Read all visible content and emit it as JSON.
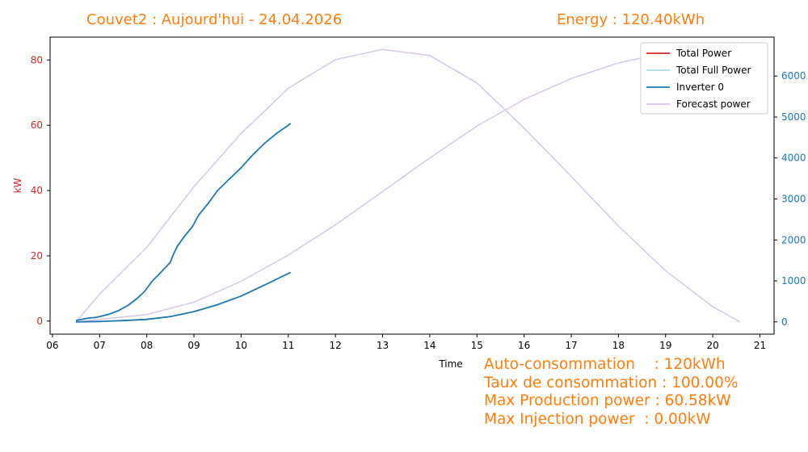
{
  "header": {
    "title": "Couvet2 : Aujourd'hui - 24.04.2026",
    "energy": "Energy : 120.40kWh"
  },
  "stats": [
    "Auto-consommation    : 120kWh",
    "Taux de consommation : 100.00%",
    "Max Production power : 60.58kW",
    "Max Injection power  : 0.00kW"
  ],
  "colors": {
    "total_power": "#d62728",
    "total_full_power": "#add8e6",
    "inverter": "#1f77b4",
    "forecast": "#d8c8e8",
    "left_axis": "#d62728",
    "right_axis": "#1f77b4"
  },
  "chart_data": {
    "type": "line",
    "xlabel": "Time",
    "ylabel": "kW",
    "x_ticks": [
      "06",
      "07",
      "08",
      "09",
      "10",
      "11",
      "12",
      "13",
      "14",
      "15",
      "16",
      "17",
      "18",
      "19",
      "20",
      "21"
    ],
    "xlim": [
      5.95,
      21.3
    ],
    "ylim": [
      -4,
      87
    ],
    "y_ticks": [
      0,
      20,
      40,
      60,
      80
    ],
    "y2lim": [
      -300,
      6950
    ],
    "y2_ticks": [
      0,
      1000,
      2000,
      3000,
      4000,
      5000,
      6000
    ],
    "legend_position": "top-right",
    "legend": [
      "Total Power",
      "Total Full Power",
      "Inverter 0",
      "Forecast power"
    ],
    "series": [
      {
        "name": "Inverter 0",
        "axis": "left",
        "x": [
          6.5,
          6.75,
          6.9,
          7.0,
          7.2,
          7.4,
          7.6,
          7.8,
          7.95,
          8.1,
          8.3,
          8.5,
          8.55,
          8.65,
          8.8,
          8.97,
          9.1,
          9.3,
          9.5,
          9.75,
          10.0,
          10.25,
          10.5,
          10.75,
          11.0,
          11.05
        ],
        "y": [
          0.2,
          0.9,
          1.1,
          1.4,
          2.1,
          3.2,
          4.8,
          7.0,
          9.0,
          12.0,
          15.0,
          18.0,
          20.0,
          23.0,
          26.0,
          29.0,
          32.5,
          36.0,
          40.0,
          43.5,
          47.0,
          51.0,
          54.5,
          57.5,
          60.0,
          60.58
        ]
      },
      {
        "name": "Inverter 0",
        "axis": "right",
        "x": [
          6.5,
          7.0,
          7.5,
          8.0,
          8.5,
          9.0,
          9.5,
          10.0,
          10.5,
          11.05
        ],
        "y": [
          0,
          10,
          30,
          60,
          130,
          250,
          420,
          630,
          900,
          1210
        ]
      },
      {
        "name": "Forecast power",
        "axis": "right",
        "x": [
          6.5,
          7.0,
          8.0,
          9.0,
          10.0,
          11.0,
          12.0,
          13.0,
          14.0,
          15.0,
          16.0,
          17.0,
          18.0,
          19.0,
          20.0,
          20.58
        ],
        "y": [
          0,
          680,
          1820,
          3300,
          4600,
          5700,
          6400,
          6650,
          6500,
          5830,
          4730,
          3550,
          2340,
          1250,
          370,
          0
        ]
      },
      {
        "name": "Forecast power",
        "axis": "right",
        "x": [
          6.5,
          7.0,
          8.0,
          9.0,
          10.0,
          11.0,
          12.0,
          13.0,
          14.0,
          15.0,
          16.0,
          17.0,
          18.0,
          19.0,
          19.6
        ],
        "y": [
          0,
          60,
          180,
          480,
          990,
          1630,
          2370,
          3180,
          4000,
          4780,
          5430,
          5940,
          6320,
          6570,
          6650
        ]
      }
    ]
  }
}
